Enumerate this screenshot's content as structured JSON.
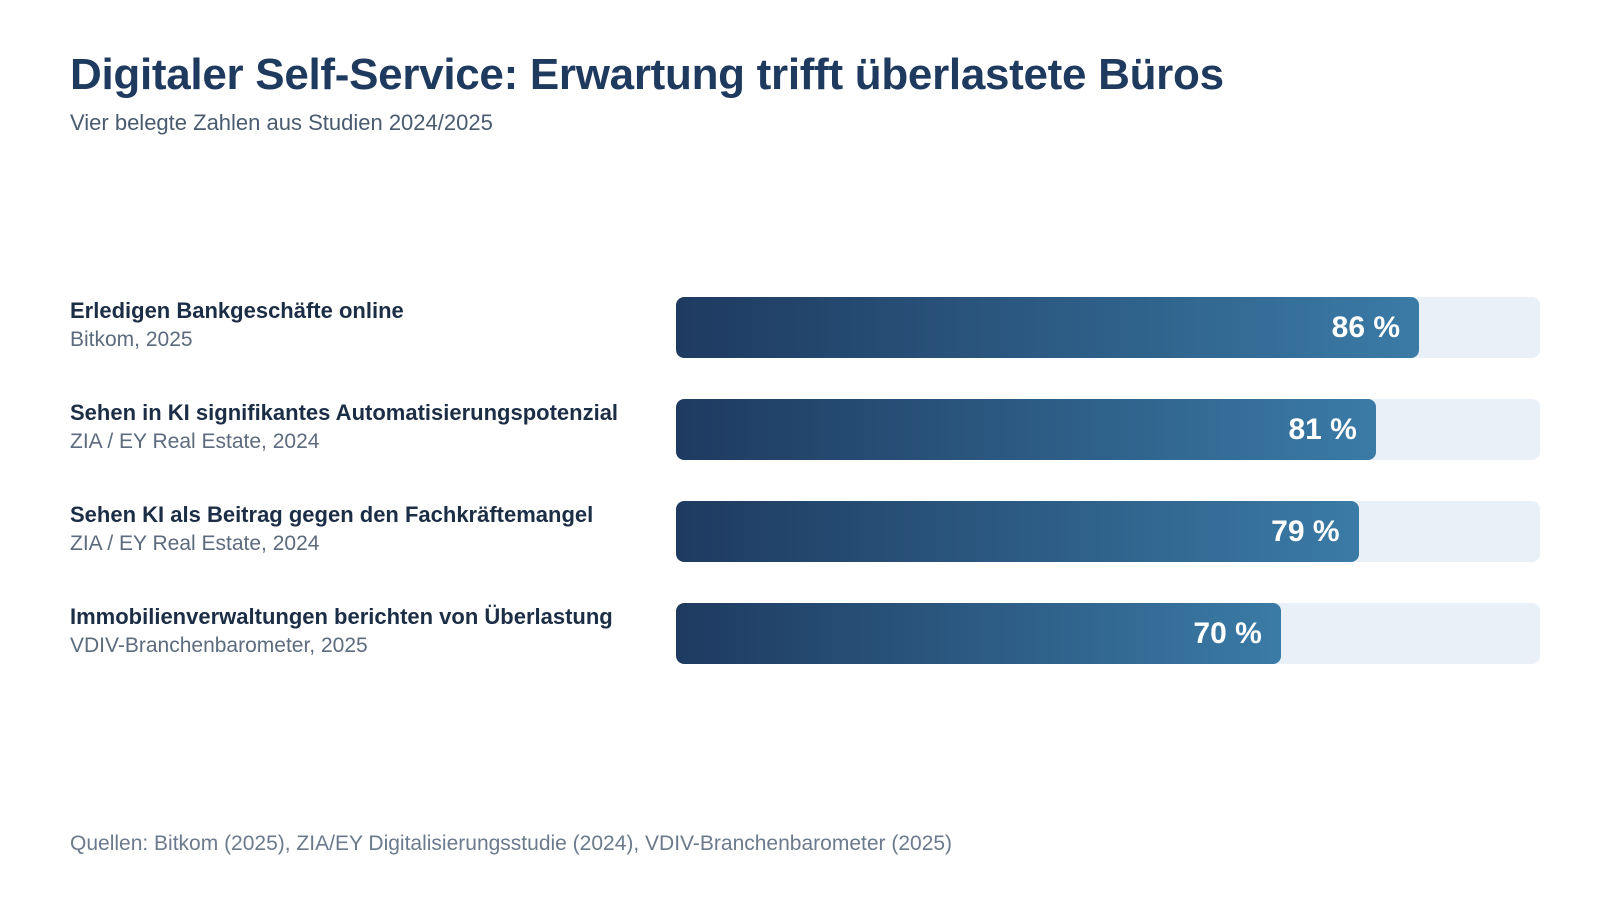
{
  "chart_data": {
    "type": "bar",
    "orientation": "horizontal",
    "title": "Digitaler Self-Service: Erwartung trifft überlastete Büros",
    "subtitle": "Vier belegte Zahlen aus Studien 2024/2025",
    "xlim": [
      0,
      100
    ],
    "grid": false,
    "categories": [
      "Erledigen Bankgeschäfte online",
      "Sehen in KI signifikantes Automatisierungspotenzial",
      "Sehen KI als Beitrag gegen den Fachkräftemangel",
      "Immobilienverwaltungen berichten von Überlastung"
    ],
    "values": [
      86,
      81,
      79,
      70
    ],
    "items": [
      {
        "label": "Erledigen Bankgeschäfte online",
        "source": "Bitkom, 2025",
        "value": 86,
        "value_label": "86 %"
      },
      {
        "label": "Sehen in KI signifikantes Automatisierungspotenzial",
        "source": "ZIA / EY Real Estate, 2024",
        "value": 81,
        "value_label": "81 %"
      },
      {
        "label": "Sehen KI als Beitrag gegen den Fachkräftemangel",
        "source": "ZIA / EY Real Estate, 2024",
        "value": 79,
        "value_label": "79 %"
      },
      {
        "label": "Immobilienverwaltungen berichten von Überlastung",
        "source": "VDIV-Branchenbarometer, 2025",
        "value": 70,
        "value_label": "70 %"
      }
    ],
    "footnote": "Quellen: Bitkom (2025), ZIA/EY Digitalisierungsstudie (2024), VDIV-Branchenbarometer (2025)",
    "colors": {
      "title": "#1f3a5f",
      "bar_start": "#1e3a60",
      "bar_end": "#3a7ba6",
      "track": "#eaf0f7",
      "value_text": "#ffffff"
    }
  }
}
